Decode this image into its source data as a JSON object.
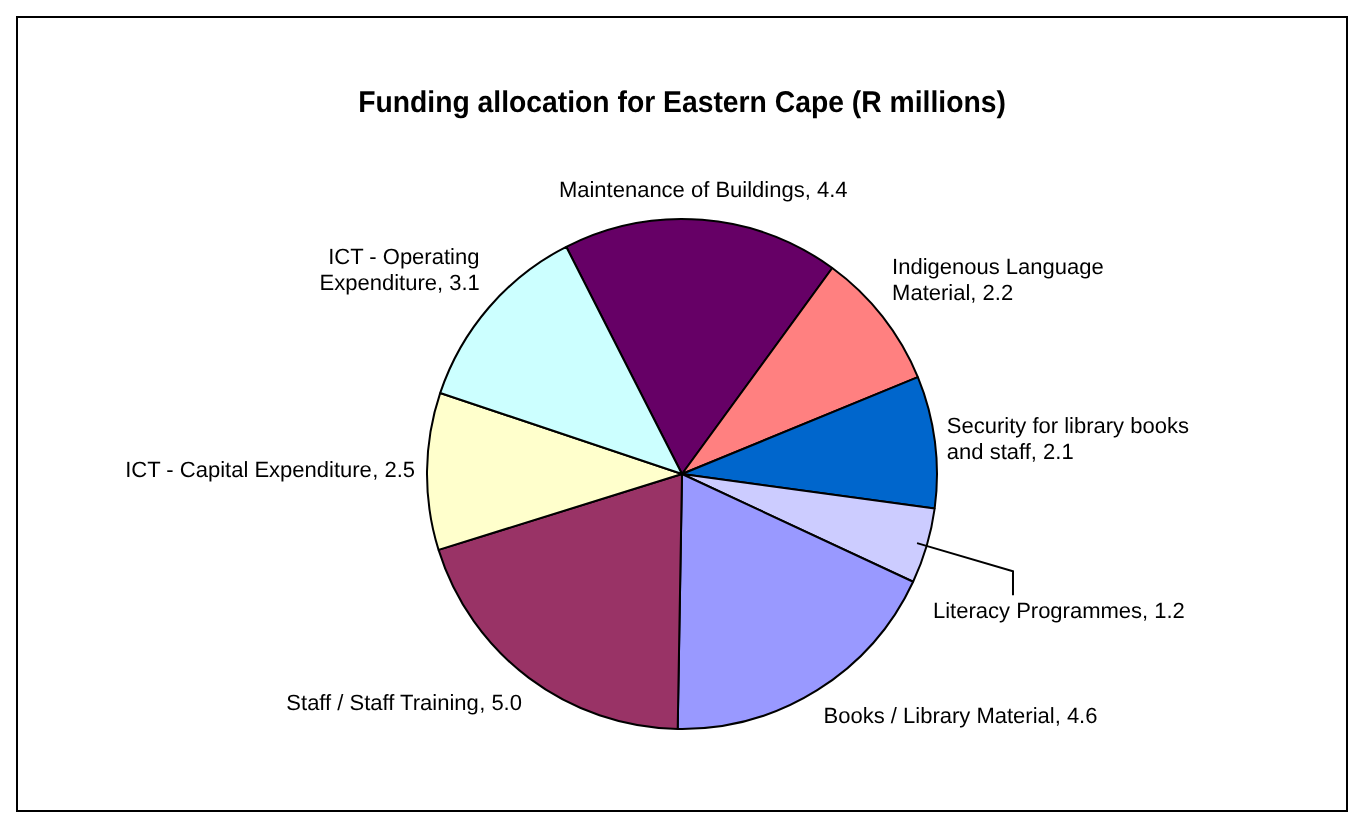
{
  "chart_data": {
    "type": "pie",
    "title": "Funding allocation for Eastern Cape (R millions)",
    "categories": [
      "Maintenance of Buildings",
      "Indigenous Language Material",
      "Security for library books and staff",
      "Literacy Programmes",
      "Books / Library Material",
      "Staff / Staff Training",
      "ICT - Capital Expenditure",
      "ICT - Operating Expenditure"
    ],
    "values": [
      4.4,
      2.2,
      2.1,
      1.2,
      4.6,
      5.0,
      2.5,
      3.1
    ],
    "value_labels": [
      ", 4.4",
      ", 2.2",
      ", 2.1",
      ", 1.2",
      ", 4.6",
      ", 5.0",
      ", 2.5",
      ", 3.1"
    ],
    "colors": [
      "#660066",
      "#ff8080",
      "#0066cc",
      "#ccccff",
      "#9999ff",
      "#993366",
      "#ffffcc",
      "#ccffff"
    ],
    "legend": false
  }
}
